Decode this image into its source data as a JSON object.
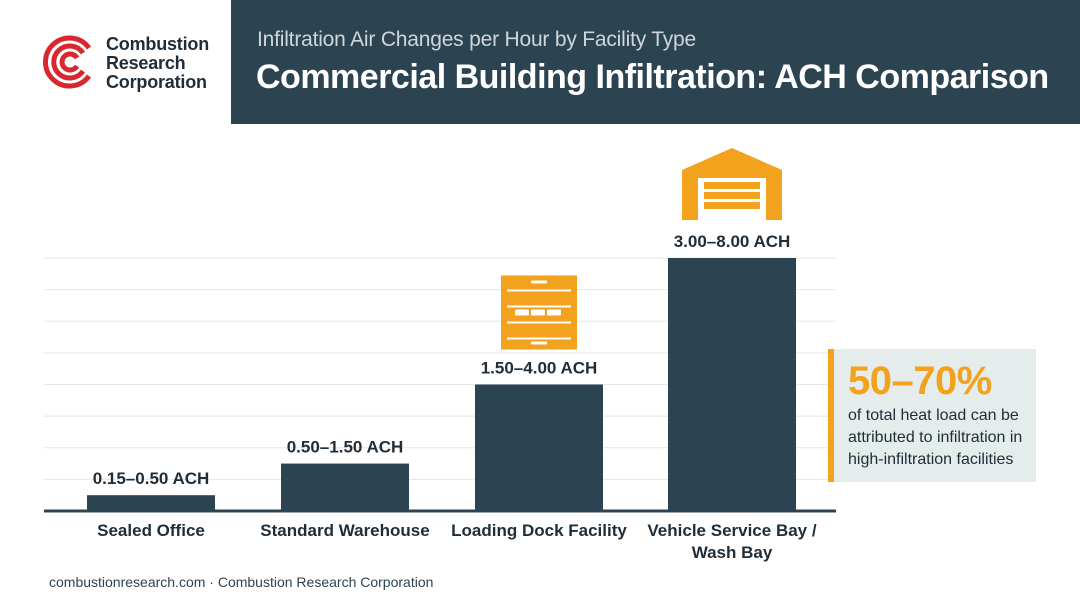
{
  "brand": {
    "name_lines": [
      "Combustion",
      "Research",
      "Corporation"
    ],
    "logo_color": "#d7282f"
  },
  "header": {
    "subtitle": "Infiltration Air Changes per Hour by Facility Type",
    "title": "Commercial Building Infiltration: ACH Comparison",
    "background": "#2c4452"
  },
  "chart_data": {
    "type": "bar",
    "categories": [
      "Sealed Office",
      "Standard Warehouse",
      "Loading Dock Facility",
      "Vehicle Service Bay / Wash Bay"
    ],
    "series": [
      {
        "values": [
          0.5,
          1.5,
          4.0,
          8.0
        ]
      }
    ],
    "ranges": [
      [
        0.15,
        0.5
      ],
      [
        0.5,
        1.5
      ],
      [
        1.5,
        4.0
      ],
      [
        3.0,
        8.0
      ]
    ],
    "data_labels": [
      "0.15–0.50 ACH",
      "0.50–1.50 ACH",
      "1.50–4.00 ACH",
      "3.00–8.00 ACH"
    ],
    "category_label_lines": [
      [
        "Sealed Office"
      ],
      [
        "Standard Warehouse"
      ],
      [
        "Loading Dock Facility"
      ],
      [
        "Vehicle Service Bay /",
        "Wash Bay"
      ]
    ],
    "icons": [
      null,
      null,
      "roll-up-door-icon",
      "garage-building-icon"
    ],
    "ylim": [
      0,
      8
    ],
    "grid": true,
    "title": "",
    "xlabel": "",
    "ylabel": "",
    "bar_color": "#2c4452",
    "icon_color": "#f2a21c"
  },
  "callout": {
    "value": "50–70%",
    "text": "of total heat load can be attributed to infiltration in high-infiltration facilities",
    "accent": "#f2a21c",
    "background": "#e4ecec"
  },
  "footer": {
    "text": "combustionresearch.com · Combustion Research Corporation"
  }
}
